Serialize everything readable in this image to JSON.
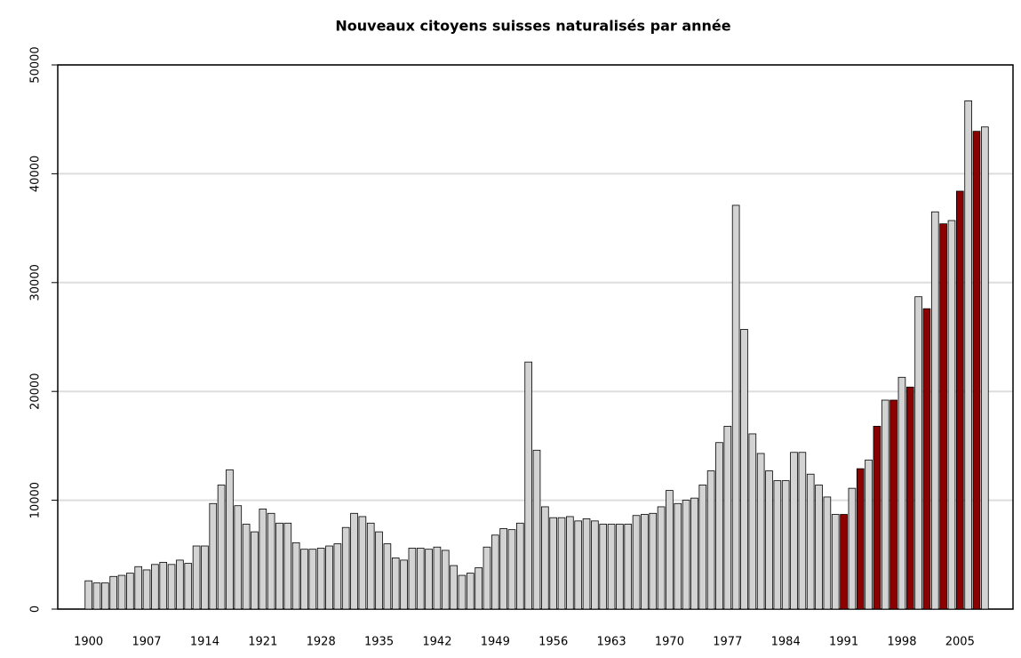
{
  "chart_data": {
    "type": "bar",
    "title": "Nouveaux citoyens suisses naturalisés par année",
    "categories": [
      1900,
      null,
      null,
      null,
      null,
      null,
      null,
      1907,
      null,
      null,
      null,
      null,
      null,
      null,
      1914,
      null,
      null,
      null,
      null,
      null,
      null,
      1921,
      null,
      null,
      null,
      null,
      null,
      null,
      1928,
      null,
      null,
      null,
      null,
      null,
      null,
      1935,
      null,
      null,
      null,
      null,
      null,
      null,
      1942,
      null,
      null,
      null,
      null,
      null,
      null,
      1949,
      null,
      null,
      null,
      null,
      null,
      null,
      1956,
      null,
      null,
      null,
      null,
      null,
      null,
      1963,
      null,
      null,
      null,
      null,
      null,
      null,
      1970,
      null,
      null,
      null,
      null,
      null,
      null,
      1977,
      null,
      null,
      null,
      null,
      null,
      null,
      1984,
      null,
      null,
      null,
      null,
      null,
      null,
      1991,
      null,
      null,
      null,
      null,
      null,
      null,
      1998,
      null,
      null,
      null,
      null,
      null,
      null,
      2005,
      null,
      null,
      null
    ],
    "values": [
      2600,
      2400,
      2400,
      3000,
      3100,
      3300,
      3900,
      3600,
      4100,
      4300,
      4100,
      4500,
      4200,
      5800,
      5800,
      9700,
      11400,
      12800,
      9500,
      7800,
      7100,
      9200,
      8800,
      7900,
      7900,
      6100,
      5500,
      5500,
      5600,
      5800,
      6000,
      7500,
      8800,
      8500,
      7900,
      7100,
      6000,
      4700,
      4500,
      5600,
      5600,
      5500,
      5700,
      5400,
      4000,
      3100,
      3300,
      3800,
      5700,
      6800,
      7400,
      7300,
      7900,
      22700,
      14600,
      9400,
      8400,
      8400,
      8500,
      8100,
      8300,
      8100,
      7800,
      7800,
      7800,
      7800,
      8600,
      8700,
      8800,
      9400,
      10900,
      9700,
      10000,
      10200,
      11400,
      12700,
      15300,
      16800,
      37100,
      25700,
      16100,
      14300,
      12700,
      11800,
      11800,
      14400,
      14400,
      12400,
      11400,
      10300,
      8700,
      8700,
      11100,
      12900,
      13700,
      16800,
      19200,
      19200,
      21300,
      20400,
      28700,
      27600,
      36500,
      35400,
      35700,
      38400,
      46700,
      43900,
      44300
    ],
    "colors": [
      "#d3d3d3",
      "#8b0000"
    ],
    "highlight": [
      91,
      93,
      95,
      97,
      99,
      101,
      103,
      105,
      107
    ],
    "ylim": [
      0,
      50000
    ],
    "yticks": [
      0,
      10000,
      20000,
      30000,
      40000,
      50000
    ],
    "grid": true
  }
}
